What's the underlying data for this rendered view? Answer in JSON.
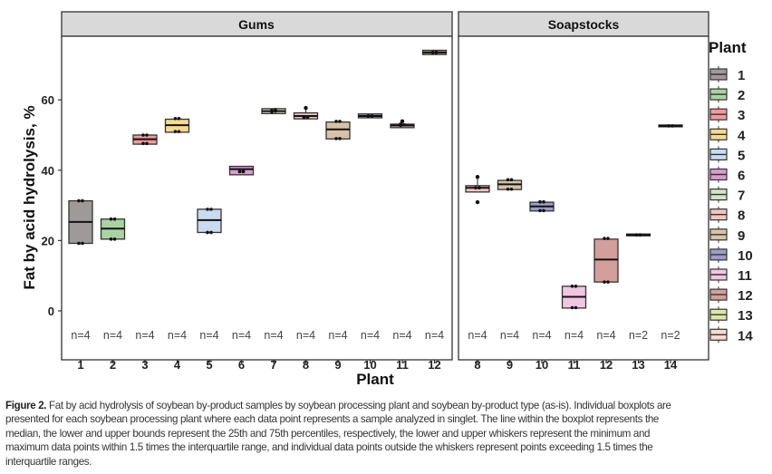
{
  "chart_data": [
    {
      "type": "boxplot",
      "panel": "Gums",
      "xlabel": "Plant",
      "ylabel": "Fat by acid hydrolysis, %",
      "ylim": [
        -5,
        78
      ],
      "yticks": [
        0,
        20,
        40,
        60
      ],
      "grid": false,
      "categories": [
        "1",
        "2",
        "3",
        "4",
        "5",
        "6",
        "7",
        "8",
        "9",
        "10",
        "11",
        "12"
      ],
      "n_labels": [
        "n=4",
        "n=4",
        "n=4",
        "n=4",
        "n=4",
        "n=4",
        "n=4",
        "n=4",
        "n=4",
        "n=4",
        "n=4",
        "n=4"
      ],
      "boxes": [
        {
          "plant": "1",
          "q1": 19.2,
          "median": 25.3,
          "q3": 31.3,
          "points": [
            19.2,
            19.2,
            31.3,
            31.3
          ],
          "outliers": []
        },
        {
          "plant": "2",
          "q1": 20.4,
          "median": 23.4,
          "q3": 26.1,
          "points": [
            20.4,
            20.4,
            26.1,
            26.1
          ],
          "outliers": []
        },
        {
          "plant": "3",
          "q1": 47.4,
          "median": 48.8,
          "q3": 50.0,
          "points": [
            47.6,
            47.6,
            50.0,
            50.0
          ],
          "outliers": []
        },
        {
          "plant": "4",
          "q1": 50.8,
          "median": 52.8,
          "q3": 54.5,
          "points": [
            51.0,
            51.0,
            54.7,
            54.7
          ],
          "outliers": []
        },
        {
          "plant": "5",
          "q1": 22.3,
          "median": 25.8,
          "q3": 28.9,
          "points": [
            22.3,
            22.3,
            28.9,
            28.9
          ],
          "outliers": []
        },
        {
          "plant": "6",
          "q1": 38.7,
          "median": 40.3,
          "q3": 41.1,
          "points": [
            39.6,
            39.6,
            39.6,
            39.6
          ],
          "outliers": []
        },
        {
          "plant": "7",
          "q1": 56.1,
          "median": 56.8,
          "q3": 57.5,
          "points": [
            56.6,
            56.8,
            57.0,
            57.2
          ],
          "outliers": []
        },
        {
          "plant": "8",
          "q1": 54.6,
          "median": 55.4,
          "q3": 56.3,
          "points": [
            55.0,
            55.0,
            55.0
          ],
          "outliers": [
            57.7
          ]
        },
        {
          "plant": "9",
          "q1": 48.9,
          "median": 51.6,
          "q3": 53.7,
          "points": [
            49.0,
            49.0,
            53.9,
            53.9
          ],
          "outliers": []
        },
        {
          "plant": "10",
          "q1": 54.9,
          "median": 55.4,
          "q3": 56.0,
          "points": [
            55.4,
            55.4,
            55.4,
            55.4
          ],
          "outliers": []
        },
        {
          "plant": "11",
          "q1": 52.1,
          "median": 52.7,
          "q3": 53.1,
          "points": [
            52.7,
            52.9,
            53.1
          ],
          "outliers": [
            53.9
          ]
        },
        {
          "plant": "12",
          "q1": 72.9,
          "median": 73.5,
          "q3": 74.1,
          "points": [
            73.5,
            73.5,
            73.5,
            73.5
          ],
          "outliers": []
        }
      ]
    },
    {
      "type": "boxplot",
      "panel": "Soapstocks",
      "xlabel": "Plant",
      "ylim": [
        -5,
        78
      ],
      "grid": false,
      "categories": [
        "8",
        "9",
        "10",
        "11",
        "12",
        "13",
        "14"
      ],
      "n_labels": [
        "n=4",
        "n=4",
        "n=4",
        "n=4",
        "n=4",
        "n=2",
        "n=2"
      ],
      "boxes": [
        {
          "plant": "8",
          "q1": 33.8,
          "median": 35.0,
          "q3": 35.6,
          "points": [
            35.0,
            35.0
          ],
          "outliers": [
            38.1,
            30.9
          ]
        },
        {
          "plant": "9",
          "q1": 34.5,
          "median": 36.0,
          "q3": 37.1,
          "points": [
            34.6,
            34.6,
            37.3,
            37.3
          ],
          "outliers": []
        },
        {
          "plant": "10",
          "q1": 28.4,
          "median": 29.7,
          "q3": 30.9,
          "points": [
            28.5,
            28.5,
            31.0,
            31.0
          ],
          "outliers": []
        },
        {
          "plant": "11",
          "q1": 0.8,
          "median": 4.0,
          "q3": 7.0,
          "points": [
            0.9,
            0.9,
            7.0,
            7.0
          ],
          "outliers": []
        },
        {
          "plant": "12",
          "q1": 8.2,
          "median": 14.6,
          "q3": 20.4,
          "points": [
            8.2,
            8.2,
            20.6,
            20.6
          ],
          "outliers": []
        },
        {
          "plant": "13",
          "q1": 21.6,
          "median": 21.6,
          "q3": 21.6,
          "points": [
            21.6,
            21.6
          ],
          "outliers": []
        },
        {
          "plant": "14",
          "q1": 52.6,
          "median": 52.6,
          "q3": 52.6,
          "points": [
            52.6,
            52.6
          ],
          "outliers": []
        }
      ]
    }
  ],
  "legend": {
    "title": "Plant",
    "position": "right",
    "items": [
      {
        "label": "1",
        "color": "#9e9a9a"
      },
      {
        "label": "2",
        "color": "#a9d3a0"
      },
      {
        "label": "3",
        "color": "#f39a9a"
      },
      {
        "label": "4",
        "color": "#f8d98c"
      },
      {
        "label": "5",
        "color": "#c8dbf1"
      },
      {
        "label": "6",
        "color": "#d99bd0"
      },
      {
        "label": "7",
        "color": "#d5e2c3"
      },
      {
        "label": "8",
        "color": "#f4c4bf"
      },
      {
        "label": "9",
        "color": "#d8c3a7"
      },
      {
        "label": "10",
        "color": "#9d9cca"
      },
      {
        "label": "11",
        "color": "#f1c6e2"
      },
      {
        "label": "12",
        "color": "#d39f9b"
      },
      {
        "label": "13",
        "color": "#dce6a7"
      },
      {
        "label": "14",
        "color": "#f7dbcf"
      }
    ]
  },
  "caption": {
    "label": "Figure 2.",
    "lines": [
      " Fat by acid hydrolysis of soybean by-product samples by soybean processing plant and soybean by-product type (as-is). Individual boxplots are",
      "presented for each soybean processing plant where each data point represents a sample analyzed in singlet. The line within the boxplot represents the",
      "median, the lower and upper bounds represent the 25th and 75th percentiles, respectively, the lower and upper whiskers represent the minimum and",
      "maximum data points within 1.5 times the interquartile range, and individual data points outside the whiskers represent points exceeding 1.5 times the",
      "interquartile ranges."
    ]
  }
}
